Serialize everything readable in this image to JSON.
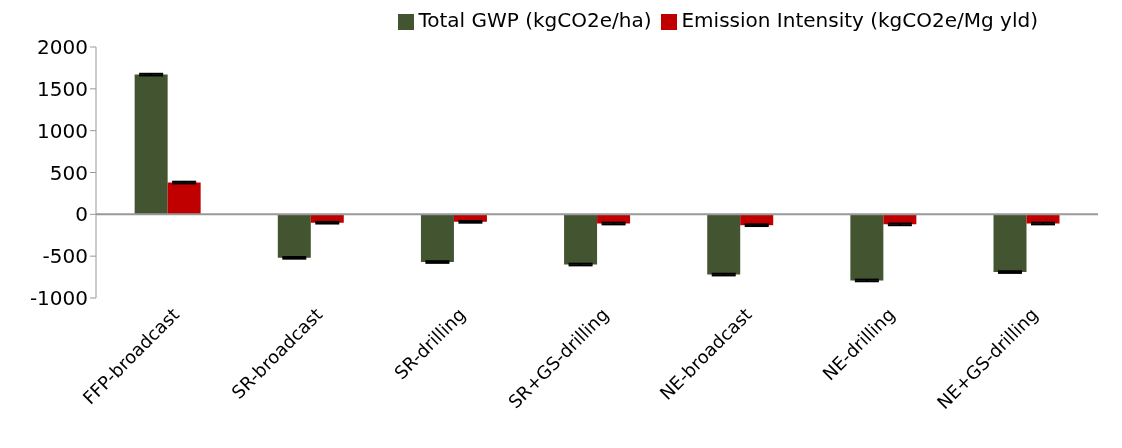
{
  "chart_data": {
    "type": "bar",
    "categories": [
      "FFP-broadcast",
      "SR-broadcast",
      "SR-drilling",
      "SR+GS-drilling",
      "NE-broadcast",
      "NE-drilling",
      "NE+GS-drilling"
    ],
    "series": [
      {
        "name": "Total GWP (kgCO2e/ha)",
        "color": "#435530",
        "values": [
          1670,
          -520,
          -570,
          -600,
          -720,
          -790,
          -690
        ],
        "errors": [
          10,
          10,
          10,
          10,
          10,
          10,
          10
        ]
      },
      {
        "name": "Emission Intensity (kgCO2e/Mg yld)",
        "color": "#c00000",
        "values": [
          380,
          -100,
          -90,
          -110,
          -130,
          -120,
          -110
        ],
        "errors": [
          10,
          10,
          10,
          10,
          10,
          10,
          10
        ]
      }
    ],
    "ylim": [
      -1000,
      2000
    ],
    "yticks": [
      -1000,
      -500,
      0,
      500,
      1000,
      1500,
      2000
    ],
    "grid": false,
    "ref_lines": [
      {
        "axis": "y",
        "value": 0,
        "color": "#999999"
      }
    ],
    "legend": "top right"
  }
}
